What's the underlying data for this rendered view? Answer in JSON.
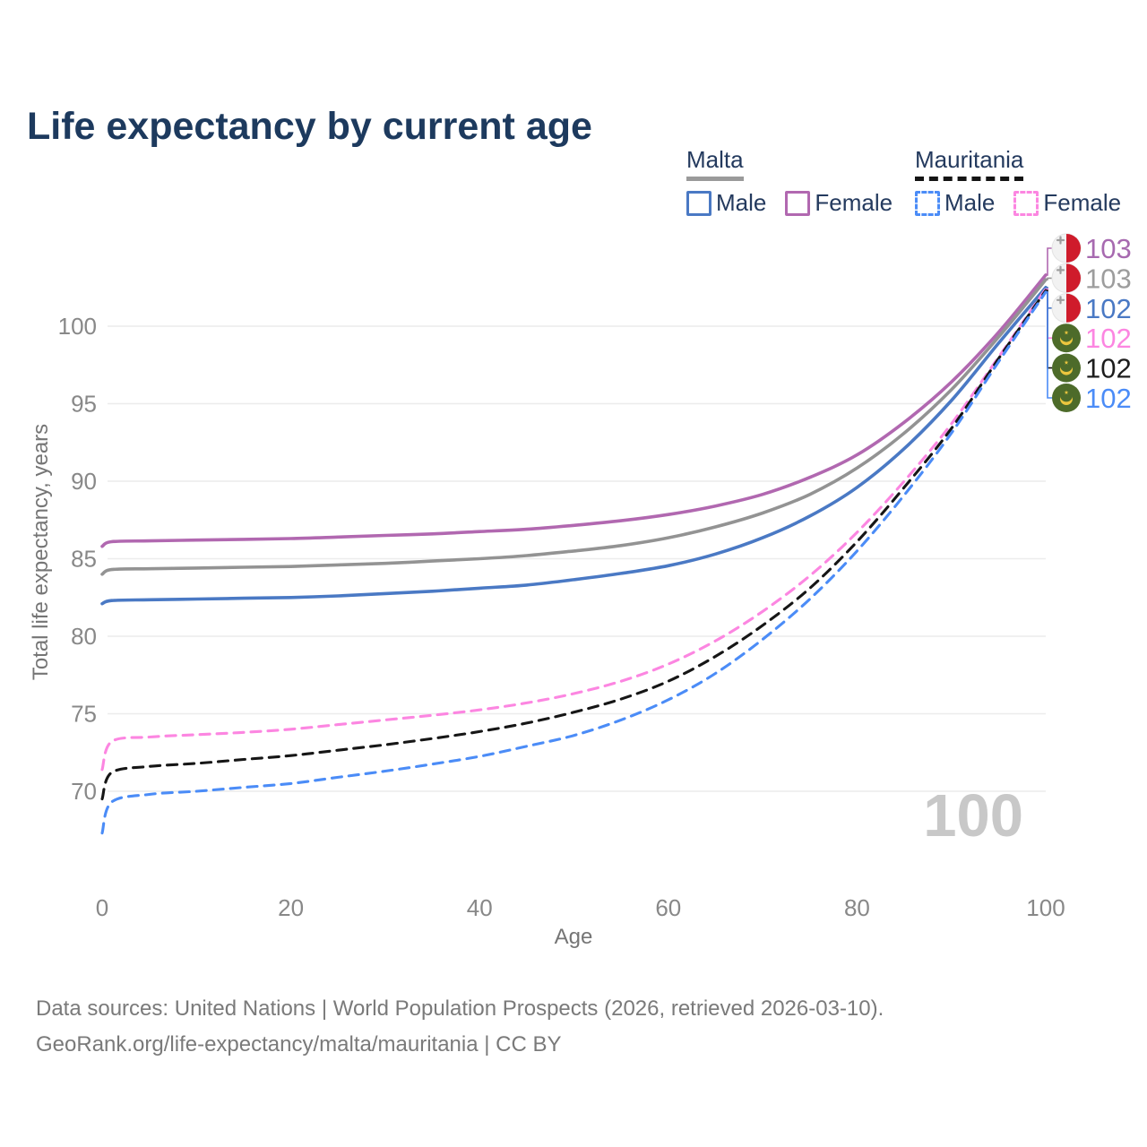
{
  "title": "Life expectancy by current age",
  "legend": {
    "groups": [
      {
        "name": "Malta",
        "line_style": "solid",
        "line_color": "#9a9a9a",
        "items": [
          {
            "label": "Male",
            "color": "#4a79c4",
            "dash": false
          },
          {
            "label": "Female",
            "color": "#b168b0",
            "dash": false
          }
        ]
      },
      {
        "name": "Mauritania",
        "line_style": "dashed",
        "line_color": "#141414",
        "items": [
          {
            "label": "Male",
            "color": "#4b8cf7",
            "dash": true
          },
          {
            "label": "Female",
            "color": "#fc86e1",
            "dash": true
          }
        ]
      }
    ]
  },
  "watermark": "100",
  "footer": {
    "line1": "Data sources: United Nations | World Population Prospects (2026, retrieved 2026-03-10).",
    "line2": "GeoRank.org/life-expectancy/malta/mauritania | CC BY"
  },
  "colors": {
    "title": "#1d3a5e",
    "legend_text": "#243a5e",
    "grid": "#ececec",
    "tick_label": "#888888",
    "axis_title": "#757575",
    "watermark": "#c8c8c8",
    "footer": "#7a7a7a"
  },
  "flags": {
    "malta": {
      "white": "#f2f2f2",
      "red": "#cf1b2b",
      "cross": "#9e9e9e",
      "border": "#e3e3e3"
    },
    "mauritania": {
      "green": "#4d6b2a",
      "yellow": "#ecc63e"
    }
  },
  "chart_data": {
    "type": "line",
    "xlabel": "Age",
    "ylabel": "Total life expectancy, years",
    "x_ticks": [
      0,
      20,
      40,
      60,
      80,
      100
    ],
    "y_ticks": [
      70,
      75,
      80,
      85,
      90,
      95,
      100
    ],
    "xlim": [
      0,
      100
    ],
    "ylim": [
      66.5,
      104
    ],
    "grid": "horizontal",
    "legend_position": "top-right",
    "x": [
      0,
      1,
      5,
      10,
      15,
      20,
      25,
      30,
      35,
      40,
      45,
      50,
      55,
      60,
      65,
      70,
      75,
      80,
      85,
      90,
      95,
      100
    ],
    "series": [
      {
        "name": "Malta Female",
        "color": "#b168b0",
        "dash": false,
        "end_label": "103",
        "label_color": "#a76ab0",
        "flag": "malta",
        "values": [
          85.8,
          86.1,
          86.15,
          86.2,
          86.25,
          86.3,
          86.4,
          86.5,
          86.6,
          86.75,
          86.9,
          87.15,
          87.45,
          87.85,
          88.4,
          89.15,
          90.25,
          91.7,
          93.8,
          96.4,
          99.6,
          103.3
        ]
      },
      {
        "name": "Malta",
        "color": "#939393",
        "dash": false,
        "end_label": "103",
        "label_color": "#9d9d9d",
        "flag": "malta",
        "values": [
          84.0,
          84.3,
          84.35,
          84.4,
          84.45,
          84.5,
          84.6,
          84.7,
          84.85,
          85.0,
          85.2,
          85.5,
          85.85,
          86.35,
          87.05,
          87.95,
          89.15,
          90.85,
          93.1,
          95.9,
          99.3,
          103.0
        ]
      },
      {
        "name": "Malta Male",
        "color": "#4a79c4",
        "dash": false,
        "end_label": "102",
        "label_color": "#4a79c4",
        "flag": "malta",
        "values": [
          82.1,
          82.3,
          82.35,
          82.4,
          82.45,
          82.5,
          82.6,
          82.75,
          82.9,
          83.1,
          83.3,
          83.65,
          84.05,
          84.55,
          85.3,
          86.35,
          87.75,
          89.6,
          92.1,
          95.2,
          98.9,
          102.5
        ]
      },
      {
        "name": "Mauritania Female",
        "color": "#fc86e1",
        "dash": true,
        "end_label": "102",
        "label_color": "#fc86e1",
        "flag": "mauritania",
        "values": [
          71.4,
          73.2,
          73.5,
          73.65,
          73.8,
          74.0,
          74.3,
          74.6,
          74.9,
          75.25,
          75.7,
          76.3,
          77.1,
          78.2,
          79.7,
          81.6,
          83.9,
          86.7,
          90.0,
          93.7,
          98.0,
          102.4
        ]
      },
      {
        "name": "Mauritania",
        "color": "#161616",
        "dash": true,
        "end_label": "102",
        "label_color": "#1d1d1d",
        "flag": "mauritania",
        "values": [
          69.5,
          71.2,
          71.6,
          71.8,
          72.05,
          72.3,
          72.65,
          73.0,
          73.4,
          73.85,
          74.4,
          75.1,
          75.95,
          77.1,
          78.7,
          80.7,
          83.1,
          86.1,
          89.6,
          93.4,
          97.9,
          102.3
        ]
      },
      {
        "name": "Mauritania Male",
        "color": "#4b8cf7",
        "dash": true,
        "end_label": "102",
        "label_color": "#4b8cf7",
        "flag": "mauritania",
        "values": [
          67.3,
          69.3,
          69.8,
          70.0,
          70.25,
          70.5,
          70.9,
          71.3,
          71.75,
          72.25,
          72.9,
          73.6,
          74.6,
          75.9,
          77.6,
          79.8,
          82.4,
          85.5,
          89.1,
          93.1,
          97.7,
          102.2
        ]
      }
    ]
  }
}
